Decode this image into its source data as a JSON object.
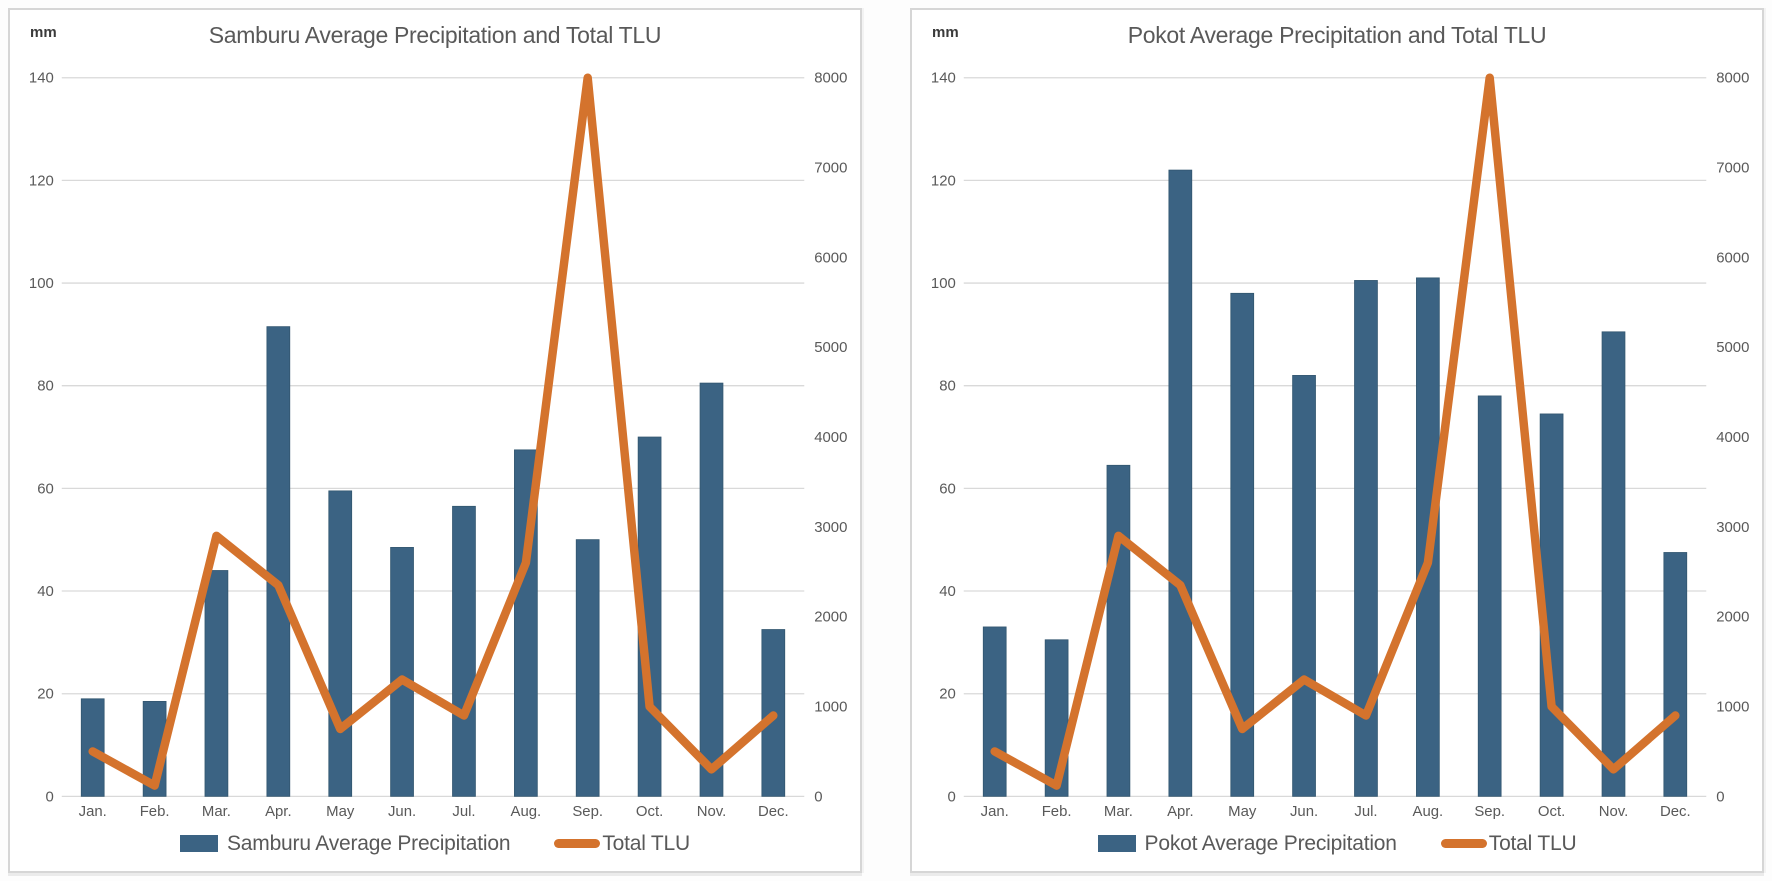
{
  "page": {
    "background_color": "#FFFFFF",
    "panel_border_color": "#D6D6D6"
  },
  "chart_data": [
    {
      "type": "bar",
      "combo": "bar+line",
      "title": "Samburu Average Precipitation and Total TLU",
      "left_axis": {
        "unit_label": "mm",
        "min": 0,
        "max": 140,
        "tick_step": 20,
        "ticks": [
          140,
          120,
          100,
          80,
          60,
          40,
          20,
          0
        ]
      },
      "right_axis": {
        "min": 0,
        "max": 8000,
        "tick_step": 1000,
        "ticks": [
          8000,
          7000,
          6000,
          5000,
          4000,
          3000,
          2000,
          1000,
          0
        ]
      },
      "grid": {
        "horizontal": true,
        "color": "#D9D9D9"
      },
      "legend_position": "bottom",
      "categories": [
        "Jan.",
        "Feb.",
        "Mar.",
        "Apr.",
        "May",
        "Jun.",
        "Jul.",
        "Aug.",
        "Sep.",
        "Oct.",
        "Nov.",
        "Dec."
      ],
      "series": [
        {
          "name": "Samburu Average Precipitation",
          "type": "bar",
          "axis": "left",
          "color": "#3B6383",
          "values": [
            19,
            18.5,
            44,
            91.5,
            59.5,
            48.5,
            56.5,
            67.5,
            50,
            70,
            80.5,
            32.5
          ]
        },
        {
          "name": "Total TLU",
          "type": "line",
          "axis": "right",
          "color": "#D4732D",
          "values": [
            500,
            120,
            2900,
            2350,
            750,
            1300,
            900,
            2600,
            8000,
            1000,
            300,
            900
          ]
        }
      ]
    },
    {
      "type": "bar",
      "combo": "bar+line",
      "title": "Pokot Average Precipitation and Total TLU",
      "left_axis": {
        "unit_label": "mm",
        "min": 0,
        "max": 140,
        "tick_step": 20,
        "ticks": [
          140,
          120,
          100,
          80,
          60,
          40,
          20,
          0
        ]
      },
      "right_axis": {
        "min": 0,
        "max": 8000,
        "tick_step": 1000,
        "ticks": [
          8000,
          7000,
          6000,
          5000,
          4000,
          3000,
          2000,
          1000,
          0
        ]
      },
      "grid": {
        "horizontal": true,
        "color": "#D9D9D9"
      },
      "legend_position": "bottom",
      "categories": [
        "Jan.",
        "Feb.",
        "Mar.",
        "Apr.",
        "May",
        "Jun.",
        "Jul.",
        "Aug.",
        "Sep.",
        "Oct.",
        "Nov.",
        "Dec."
      ],
      "series": [
        {
          "name": "Pokot Average Precipitation",
          "type": "bar",
          "axis": "left",
          "color": "#3B6383",
          "values": [
            33,
            30.5,
            64.5,
            122,
            98,
            82,
            100.5,
            101,
            78,
            74.5,
            90.5,
            47.5
          ]
        },
        {
          "name": "Total TLU",
          "type": "line",
          "axis": "right",
          "color": "#D4732D",
          "values": [
            500,
            120,
            2900,
            2350,
            750,
            1300,
            900,
            2600,
            8000,
            1000,
            300,
            900
          ]
        }
      ]
    }
  ]
}
